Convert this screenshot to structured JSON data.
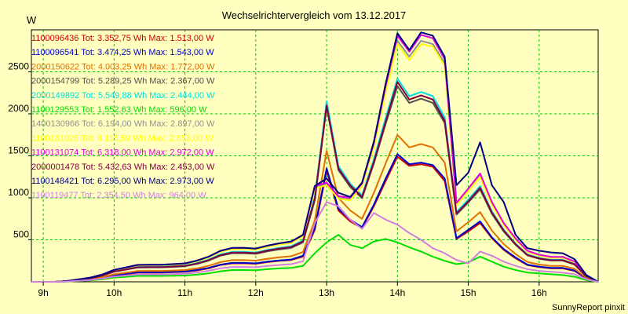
{
  "chart_data": {
    "type": "line",
    "title": "Wechselrichtervergleich vom 13.12.2017",
    "ylabel": "W",
    "xlabel": "",
    "footer": "SunnyReport pinxit",
    "ylim": [
      0,
      3000
    ],
    "xlim": [
      8.833,
      16.833
    ],
    "yticks": [
      500,
      1000,
      1500,
      2000,
      2500
    ],
    "xticks": [
      {
        "v": 9,
        "label": "9h"
      },
      {
        "v": 10,
        "label": "10h"
      },
      {
        "v": 11,
        "label": "11h"
      },
      {
        "v": 12,
        "label": "12h"
      },
      {
        "v": 13,
        "label": "13h"
      },
      {
        "v": 14,
        "label": "14h"
      },
      {
        "v": 15,
        "label": "15h"
      },
      {
        "v": 16,
        "label": "16h"
      }
    ],
    "grid": true,
    "legend_position": "top-left",
    "x": [
      8.833,
      9.0,
      9.167,
      9.333,
      9.5,
      9.667,
      9.833,
      10.0,
      10.167,
      10.333,
      10.5,
      10.667,
      10.833,
      11.0,
      11.167,
      11.333,
      11.5,
      11.667,
      11.833,
      12.0,
      12.167,
      12.333,
      12.5,
      12.667,
      12.833,
      13.0,
      13.167,
      13.333,
      13.5,
      13.667,
      13.833,
      14.0,
      14.167,
      14.333,
      14.5,
      14.667,
      14.833,
      15.0,
      15.167,
      15.333,
      15.5,
      15.667,
      15.833,
      16.0,
      16.167,
      16.333,
      16.5,
      16.667,
      16.833
    ],
    "series": [
      {
        "name": "1100096436 Tot: 3.352,75 Wh Max: 1.513,00 W",
        "color": "#cc0000",
        "values": [
          0,
          0,
          0,
          5,
          15,
          25,
          45,
          75,
          90,
          110,
          110,
          110,
          115,
          120,
          135,
          160,
          200,
          220,
          220,
          215,
          235,
          250,
          260,
          300,
          620,
          1320,
          850,
          720,
          640,
          900,
          1200,
          1490,
          1380,
          1400,
          1370,
          1200,
          510,
          600,
          700,
          520,
          380,
          280,
          200,
          175,
          160,
          160,
          130,
          40,
          0
        ]
      },
      {
        "name": "1100096541 Tot: 3.474,25 Wh Max: 1.543,00 W",
        "color": "#0000cc",
        "values": [
          0,
          0,
          0,
          5,
          15,
          28,
          48,
          78,
          95,
          112,
          112,
          113,
          118,
          122,
          140,
          165,
          205,
          225,
          225,
          220,
          240,
          255,
          265,
          310,
          640,
          1350,
          870,
          740,
          650,
          920,
          1230,
          1520,
          1400,
          1420,
          1390,
          1230,
          520,
          620,
          720,
          530,
          390,
          290,
          205,
          180,
          165,
          165,
          135,
          42,
          0
        ]
      },
      {
        "name": "2000150622 Tot: 4.003,25 Wh Max: 1.772,00 W",
        "color": "#e07000",
        "values": [
          0,
          0,
          0,
          6,
          18,
          32,
          55,
          90,
          108,
          128,
          130,
          130,
          135,
          140,
          160,
          190,
          235,
          258,
          258,
          252,
          275,
          292,
          305,
          355,
          730,
          1560,
          1000,
          850,
          750,
          1060,
          1410,
          1750,
          1600,
          1640,
          1600,
          1420,
          600,
          710,
          830,
          610,
          450,
          330,
          236,
          206,
          190,
          190,
          155,
          48,
          0
        ]
      },
      {
        "name": "2000154799 Tot: 5.289,25 Wh Max: 2.367,00 W",
        "color": "#505050",
        "values": [
          0,
          0,
          0,
          8,
          24,
          42,
          73,
          120,
          145,
          170,
          172,
          172,
          178,
          185,
          212,
          252,
          310,
          340,
          340,
          333,
          363,
          386,
          403,
          470,
          970,
          2080,
          1330,
          1130,
          995,
          1410,
          1880,
          2330,
          2130,
          2180,
          2130,
          1890,
          800,
          945,
          1100,
          810,
          600,
          440,
          315,
          274,
          253,
          253,
          206,
          64,
          0
        ]
      },
      {
        "name": "2000149892 Tot: 5.549,88 Wh Max: 2.444,00 W",
        "color": "#00e0e0",
        "values": [
          0,
          0,
          0,
          8,
          25,
          44,
          76,
          125,
          150,
          178,
          180,
          180,
          186,
          194,
          222,
          264,
          325,
          357,
          357,
          349,
          381,
          405,
          423,
          493,
          1010,
          2150,
          1380,
          1170,
          1030,
          1460,
          1950,
          2420,
          2210,
          2260,
          2210,
          1960,
          830,
          980,
          1140,
          840,
          620,
          455,
          326,
          284,
          262,
          262,
          213,
          66,
          0
        ]
      },
      {
        "name": "1100129553 Tot: 1.552,63 Wh Max: 596,00 W",
        "color": "#00e000",
        "values": [
          0,
          0,
          0,
          3,
          10,
          18,
          30,
          50,
          60,
          70,
          70,
          70,
          72,
          75,
          85,
          100,
          125,
          140,
          140,
          138,
          150,
          160,
          165,
          190,
          340,
          470,
          560,
          440,
          400,
          480,
          510,
          470,
          410,
          360,
          300,
          250,
          210,
          230,
          300,
          240,
          180,
          140,
          110,
          100,
          90,
          80,
          60,
          20,
          0
        ]
      },
      {
        "name": "1400130966 Tot: 6.194,00 Wh Max: 2.897,00 W",
        "color": "#909090",
        "values": [
          0,
          0,
          0,
          9,
          28,
          49,
          85,
          140,
          168,
          198,
          200,
          200,
          207,
          216,
          247,
          293,
          362,
          397,
          397,
          388,
          424,
          450,
          470,
          548,
          1120,
          1160,
          1000,
          980,
          1150,
          1620,
          2290,
          2870,
          2680,
          2870,
          2830,
          2600,
          920,
          1090,
          1270,
          930,
          690,
          506,
          363,
          316,
          291,
          291,
          237,
          74,
          0
        ]
      },
      {
        "name": "1100131025 Tot: 6.115,50 Wh Max: 2.853,00 W",
        "color": "#ffff00",
        "values": [
          0,
          0,
          0,
          9,
          28,
          48,
          84,
          138,
          166,
          196,
          198,
          198,
          205,
          213,
          244,
          290,
          358,
          392,
          392,
          383,
          419,
          445,
          465,
          541,
          1110,
          1150,
          990,
          970,
          1140,
          1600,
          2260,
          2830,
          2640,
          2830,
          2800,
          2570,
          910,
          1080,
          1250,
          920,
          680,
          500,
          358,
          312,
          287,
          287,
          234,
          73,
          0
        ]
      },
      {
        "name": "1100131074 Tot: 6.318,00 Wh Max: 2.972,00 W",
        "color": "#e000e0",
        "values": [
          0,
          0,
          0,
          9,
          29,
          50,
          87,
          143,
          172,
          202,
          204,
          204,
          211,
          220,
          252,
          299,
          369,
          405,
          405,
          396,
          432,
          459,
          480,
          559,
          1140,
          1180,
          1020,
          1000,
          1170,
          1650,
          2330,
          2930,
          2740,
          2940,
          2900,
          2650,
          940,
          1110,
          1290,
          950,
          700,
          516,
          370,
          322,
          297,
          297,
          242,
          75,
          0
        ]
      },
      {
        "name": "2000001478 Tot: 5.432,63 Wh Max: 2.453,00 W",
        "color": "#800040",
        "values": [
          0,
          0,
          0,
          8,
          25,
          43,
          75,
          122,
          147,
          173,
          176,
          176,
          182,
          190,
          217,
          258,
          318,
          349,
          349,
          341,
          373,
          396,
          414,
          482,
          990,
          2100,
          1350,
          1150,
          1010,
          1430,
          1910,
          2380,
          2170,
          2220,
          2170,
          1920,
          815,
          960,
          1120,
          825,
          610,
          448,
          320,
          279,
          257,
          257,
          209,
          65,
          0
        ]
      },
      {
        "name": "1100148421 Tot: 6.295,00 Wh Max: 2.973,00 W",
        "color": "#000080",
        "values": [
          0,
          0,
          0,
          9,
          29,
          50,
          87,
          142,
          171,
          201,
          203,
          203,
          210,
          219,
          251,
          298,
          368,
          404,
          404,
          395,
          431,
          458,
          479,
          558,
          1140,
          1230,
          1060,
          1010,
          1180,
          1670,
          2360,
          2960,
          2760,
          2970,
          2930,
          2680,
          1150,
          1300,
          1660,
          1150,
          950,
          560,
          400,
          370,
          350,
          340,
          270,
          80,
          0
        ]
      },
      {
        "name": "1100119477 Tot: 2.354,50 Wh Max: 964,00 W",
        "color": "#d080e0",
        "values": [
          0,
          0,
          0,
          4,
          13,
          22,
          38,
          62,
          75,
          88,
          89,
          89,
          92,
          96,
          110,
          131,
          161,
          177,
          177,
          173,
          189,
          201,
          210,
          245,
          700,
          950,
          900,
          740,
          630,
          820,
          740,
          680,
          580,
          500,
          400,
          340,
          260,
          220,
          360,
          310,
          240,
          190,
          150,
          130,
          120,
          110,
          90,
          30,
          0
        ]
      }
    ]
  }
}
